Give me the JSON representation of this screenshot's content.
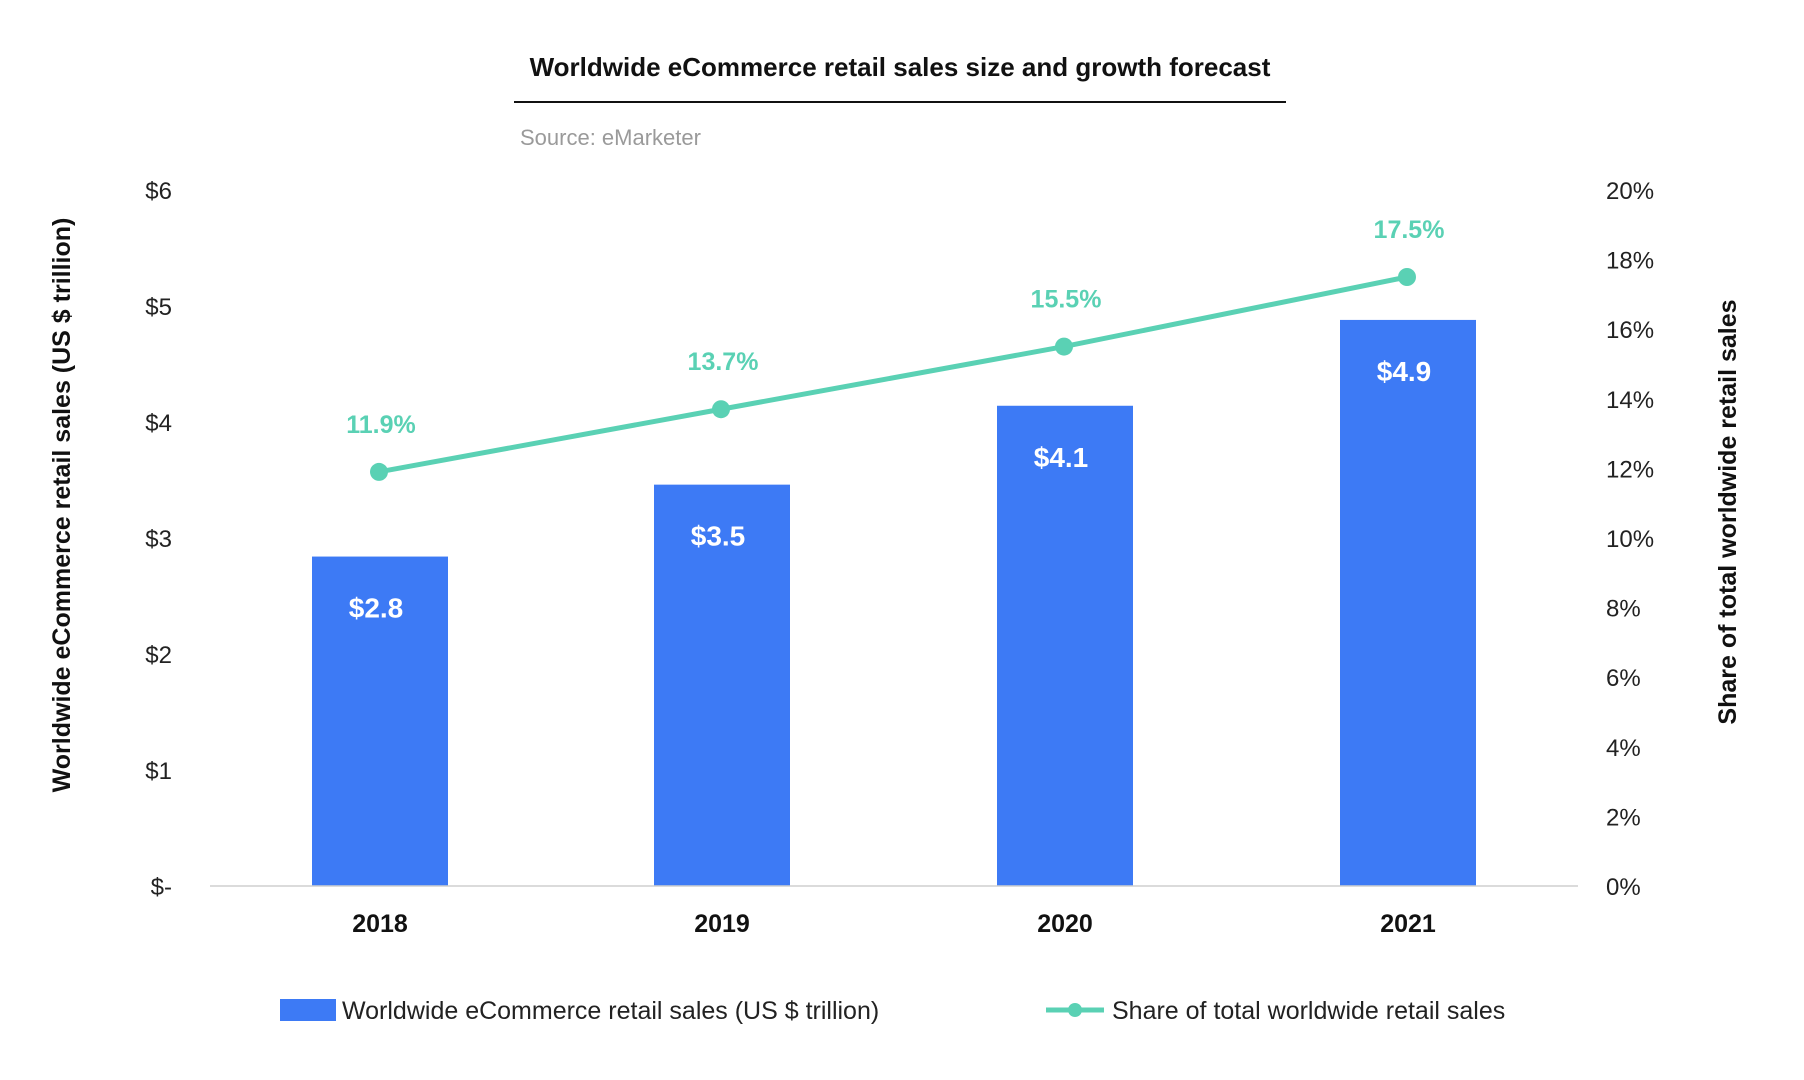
{
  "chart_data": {
    "type": "bar",
    "title": "Worldwide eCommerce retail sales size and growth forecast",
    "subtitle": "Source: eMarketer",
    "categories": [
      "2018",
      "2019",
      "2020",
      "2021"
    ],
    "ylabel": "Worldwide eCommerce retail sales (US $ trillion)",
    "y2label": "Share of total worldwide retail sales",
    "ylim": [
      0,
      6
    ],
    "y2lim": [
      0,
      20
    ],
    "yticks": [
      "$-",
      "$1",
      "$2",
      "$3",
      "$4",
      "$5",
      "$6"
    ],
    "y2ticks": [
      "0%",
      "2%",
      "4%",
      "6%",
      "8%",
      "10%",
      "12%",
      "14%",
      "16%",
      "18%",
      "20%"
    ],
    "grid": false,
    "legend_position": "bottom",
    "series": [
      {
        "name": "Worldwide eCommerce retail sales (US $ trillion)",
        "type": "bar",
        "axis": "left",
        "values": [
          2.84,
          3.46,
          4.14,
          4.88
        ],
        "labels": [
          "$2.8",
          "$3.5",
          "$4.1",
          "$4.9"
        ],
        "color": "#3d7af5"
      },
      {
        "name": "Share of total worldwide retail sales",
        "type": "line",
        "axis": "right",
        "values": [
          11.9,
          13.7,
          15.5,
          17.5
        ],
        "labels": [
          "11.9%",
          "13.7%",
          "15.5%",
          "17.5%"
        ],
        "color": "#5ad1b4"
      }
    ]
  }
}
